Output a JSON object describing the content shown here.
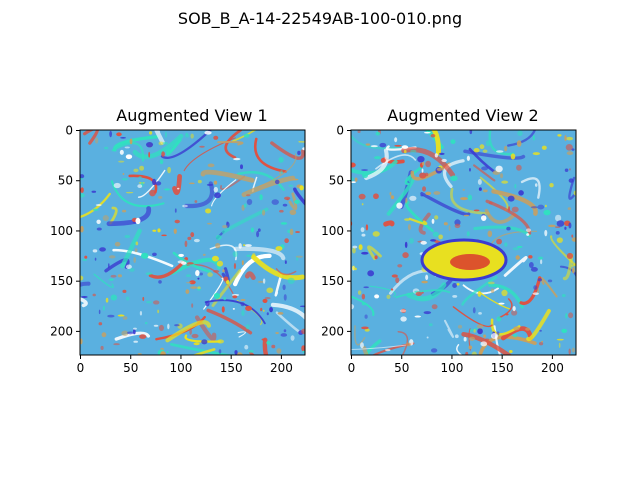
{
  "figure": {
    "suptitle": "SOB_B_A-14-22549AB-100-010.png"
  },
  "panels": [
    {
      "title": "Augmented View 1",
      "xticks": [
        "0",
        "50",
        "100",
        "150",
        "200"
      ],
      "yticks": [
        "0",
        "50",
        "100",
        "150",
        "200"
      ],
      "image_size": [
        224,
        224
      ]
    },
    {
      "title": "Augmented View 2",
      "xticks": [
        "0",
        "50",
        "100",
        "150",
        "200"
      ],
      "yticks": [
        "0",
        "50",
        "100",
        "150",
        "200"
      ],
      "image_size": [
        224,
        224
      ]
    }
  ],
  "colors": {
    "background": "#5ab0e0",
    "accents": [
      "#3b3bd0",
      "#30e0c0",
      "#e05040",
      "#c8a060",
      "#ffffff",
      "#e8e020"
    ]
  }
}
